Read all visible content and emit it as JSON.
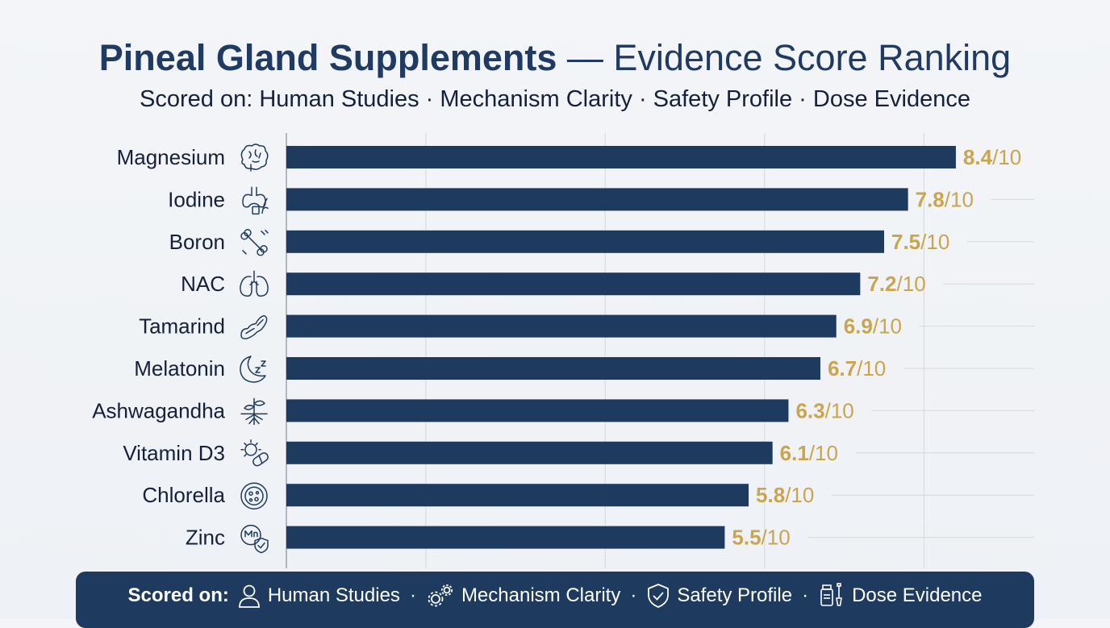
{
  "title": {
    "bold": "Pineal Gland Supplements",
    "rest": " — Evidence Score Ranking"
  },
  "subtitle": "Scored on: Human Studies · Mechanism Clarity · Safety Profile · Dose Evidence",
  "colors": {
    "bar": "#1e3a5f",
    "score": "#c9a54f",
    "grid": "#d3d8df",
    "footer_bg": "#1e3a5f"
  },
  "chart_data": {
    "type": "bar",
    "orientation": "horizontal",
    "categories": [
      "Magnesium",
      "Iodine",
      "Boron",
      "NAC",
      "Tamarind",
      "Melatonin",
      "Ashwagandha",
      "Vitamin D3",
      "Chlorella",
      "Zinc"
    ],
    "icons": [
      "brain-icon",
      "thyroid-icon",
      "bone-icon",
      "lungs-icon",
      "tamarind-pod-icon",
      "moon-sleep-icon",
      "plant-roots-icon",
      "sun-capsule-icon",
      "cell-icon",
      "mineral-shield-icon"
    ],
    "values": [
      8.4,
      7.8,
      7.5,
      7.2,
      6.9,
      6.7,
      6.3,
      6.1,
      5.8,
      5.5
    ],
    "score_suffix": "/10",
    "xlim": [
      0,
      10
    ],
    "grid": true
  },
  "footer": {
    "label": "Scored on:",
    "items": [
      {
        "icon": "person-icon",
        "text": "Human Studies"
      },
      {
        "icon": "gears-icon",
        "text": "Mechanism Clarity"
      },
      {
        "icon": "shield-check-icon",
        "text": "Safety Profile"
      },
      {
        "icon": "dose-bottle-icon",
        "text": "Dose Evidence"
      }
    ],
    "separator": "·"
  }
}
